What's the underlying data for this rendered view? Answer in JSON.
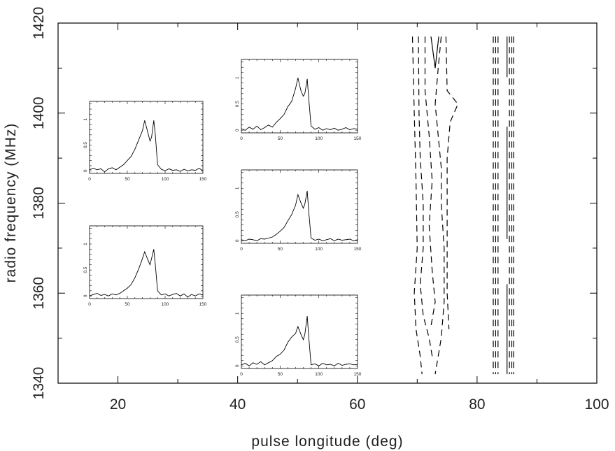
{
  "chart_data": {
    "type": "line",
    "xlabel": "pulse longitude (deg)",
    "ylabel": "radio frequency (MHz)",
    "xlim": [
      10,
      100
    ],
    "ylim": [
      1340,
      1420
    ],
    "xticks": [
      "20",
      "40",
      "60",
      "80",
      "100"
    ],
    "xtick_values": [
      20,
      40,
      60,
      80,
      100
    ],
    "yticks": [
      "1340",
      "1360",
      "1380",
      "1400",
      "1420"
    ],
    "ytick_values": [
      1340,
      1360,
      1380,
      1400,
      1420
    ],
    "grid": false,
    "contours": [
      {
        "name": "contour-1",
        "style": "dashed",
        "points": [
          [
            69.2,
            1417
          ],
          [
            69.5,
            1400
          ],
          [
            69.8,
            1385
          ],
          [
            70,
            1370
          ],
          [
            69.5,
            1360
          ],
          [
            69.8,
            1352
          ],
          [
            70.5,
            1346
          ],
          [
            70.8,
            1342
          ]
        ]
      },
      {
        "name": "contour-2",
        "style": "dashed",
        "points": [
          [
            70.2,
            1417
          ],
          [
            70.3,
            1400
          ],
          [
            70.5,
            1390
          ],
          [
            71,
            1380
          ],
          [
            71,
            1370
          ],
          [
            70.5,
            1362
          ],
          [
            71,
            1355
          ],
          [
            72,
            1350
          ],
          [
            72.5,
            1346
          ]
        ]
      },
      {
        "name": "contour-3",
        "style": "dashed",
        "points": [
          [
            71.3,
            1417
          ],
          [
            71.3,
            1405
          ],
          [
            72,
            1395
          ],
          [
            72.5,
            1385
          ],
          [
            72,
            1375
          ],
          [
            72.5,
            1365
          ],
          [
            73,
            1358
          ],
          [
            72.2,
            1352
          ]
        ]
      },
      {
        "name": "contour-4",
        "style": "solid",
        "points": [
          [
            72.3,
            1417
          ],
          [
            73,
            1410
          ],
          [
            73.6,
            1417
          ]
        ]
      },
      {
        "name": "contour-5",
        "style": "dashed",
        "points": [
          [
            74,
            1417
          ],
          [
            73.5,
            1410
          ],
          [
            73,
            1402
          ],
          [
            73.5,
            1395
          ],
          [
            74,
            1388
          ],
          [
            74,
            1380
          ],
          [
            74.5,
            1370
          ],
          [
            74.5,
            1358
          ],
          [
            74,
            1350
          ],
          [
            73.5,
            1346
          ],
          [
            73,
            1342
          ]
        ]
      },
      {
        "name": "contour-6",
        "style": "dashed",
        "points": [
          [
            74.8,
            1417
          ],
          [
            75,
            1405
          ],
          [
            76.8,
            1402
          ],
          [
            75.5,
            1398
          ],
          [
            75,
            1390
          ],
          [
            75,
            1380
          ],
          [
            75,
            1370
          ],
          [
            75,
            1360
          ],
          [
            75.3,
            1352
          ]
        ]
      },
      {
        "name": "contour-7",
        "style": "dashed",
        "points": [
          [
            82.7,
            1417
          ],
          [
            82.7,
            1342
          ]
        ]
      },
      {
        "name": "contour-8",
        "style": "dashed",
        "points": [
          [
            83.1,
            1417
          ],
          [
            83.1,
            1342
          ]
        ]
      },
      {
        "name": "contour-9",
        "style": "dashed",
        "points": [
          [
            83.5,
            1417
          ],
          [
            83.5,
            1342
          ]
        ]
      },
      {
        "name": "contour-10",
        "style": "solid",
        "points": [
          [
            85,
            1417
          ],
          [
            85,
            1408
          ]
        ]
      },
      {
        "name": "contour-11",
        "style": "solid",
        "points": [
          [
            85,
            1397
          ],
          [
            85,
            1372
          ]
        ]
      },
      {
        "name": "contour-12",
        "style": "solid",
        "points": [
          [
            85,
            1362
          ],
          [
            85,
            1342
          ]
        ]
      },
      {
        "name": "contour-13",
        "style": "dashed",
        "points": [
          [
            85.4,
            1417
          ],
          [
            85.4,
            1342
          ]
        ]
      },
      {
        "name": "contour-14",
        "style": "dashed",
        "points": [
          [
            85.8,
            1417
          ],
          [
            85.8,
            1342
          ]
        ]
      },
      {
        "name": "contour-15",
        "style": "dashed",
        "points": [
          [
            86.1,
            1417
          ],
          [
            86.1,
            1342
          ]
        ]
      }
    ],
    "insets": {
      "xlim": [
        0,
        150
      ],
      "ylim": [
        -0.05,
        1.35
      ],
      "xticks": [
        "0",
        "50",
        "100",
        "150"
      ],
      "xtick_values": [
        0,
        50,
        100,
        150
      ],
      "yticks": [
        "0",
        "0.5",
        "1"
      ],
      "ytick_values": [
        0,
        0.5,
        1
      ],
      "x": [
        0,
        5,
        10,
        15,
        20,
        25,
        30,
        35,
        40,
        45,
        50,
        55,
        60,
        65,
        70,
        73,
        77,
        80,
        82,
        85,
        87,
        90,
        95,
        100,
        105,
        110,
        115,
        120,
        125,
        130,
        135,
        140,
        145,
        150
      ],
      "profiles": [
        {
          "name": "inset-upper-left",
          "y": [
            0.02,
            0.05,
            0.02,
            0.04,
            -0.02,
            0.04,
            0.06,
            0.02,
            0.07,
            0.12,
            0.2,
            0.28,
            0.42,
            0.6,
            0.78,
            0.98,
            0.75,
            0.58,
            0.65,
            0.98,
            0.7,
            0.12,
            0.03,
            0.0,
            0.04,
            0.01,
            0.02,
            -0.01,
            0.03,
            0.0,
            0.02,
            0.01,
            0.05,
            0.0
          ]
        },
        {
          "name": "inset-lower-left",
          "y": [
            0.0,
            0.03,
            0.05,
            0.01,
            0.03,
            0.0,
            0.04,
            0.02,
            0.05,
            0.1,
            0.15,
            0.22,
            0.35,
            0.52,
            0.72,
            0.85,
            0.7,
            0.6,
            0.72,
            0.9,
            0.6,
            0.1,
            0.02,
            0.04,
            0.0,
            0.03,
            0.05,
            0.0,
            0.04,
            -0.02,
            0.03,
            0.0,
            0.04,
            0.02
          ]
        },
        {
          "name": "inset-top-middle",
          "y": [
            0.03,
            0.0,
            0.06,
            0.02,
            0.08,
            0.01,
            0.05,
            0.1,
            0.06,
            0.15,
            0.22,
            0.3,
            0.45,
            0.55,
            0.8,
            1.0,
            0.75,
            0.65,
            0.7,
            0.98,
            0.6,
            0.08,
            0.02,
            0.05,
            0.0,
            0.03,
            0.01,
            0.04,
            0.0,
            0.02,
            0.05,
            0.01,
            0.03,
            0.02
          ]
        },
        {
          "name": "inset-center-middle",
          "y": [
            0.02,
            0.0,
            0.03,
            0.02,
            0.0,
            0.04,
            0.03,
            0.05,
            0.07,
            0.12,
            0.18,
            0.25,
            0.38,
            0.5,
            0.68,
            0.88,
            0.72,
            0.62,
            0.7,
            0.95,
            0.55,
            0.05,
            0.01,
            0.03,
            0.0,
            0.02,
            0.04,
            0.0,
            0.03,
            0.01,
            0.02,
            0.03,
            0.0,
            0.02
          ]
        },
        {
          "name": "inset-bottom-middle",
          "y": [
            0.02,
            0.05,
            0.0,
            0.06,
            0.03,
            0.08,
            0.02,
            0.06,
            0.1,
            0.18,
            0.22,
            0.3,
            0.45,
            0.55,
            0.62,
            0.75,
            0.6,
            0.5,
            0.6,
            0.95,
            0.55,
            0.02,
            0.04,
            0.0,
            0.05,
            0.02,
            0.03,
            0.0,
            0.05,
            0.01,
            0.03,
            0.04,
            0.02,
            0.03
          ]
        }
      ]
    }
  }
}
